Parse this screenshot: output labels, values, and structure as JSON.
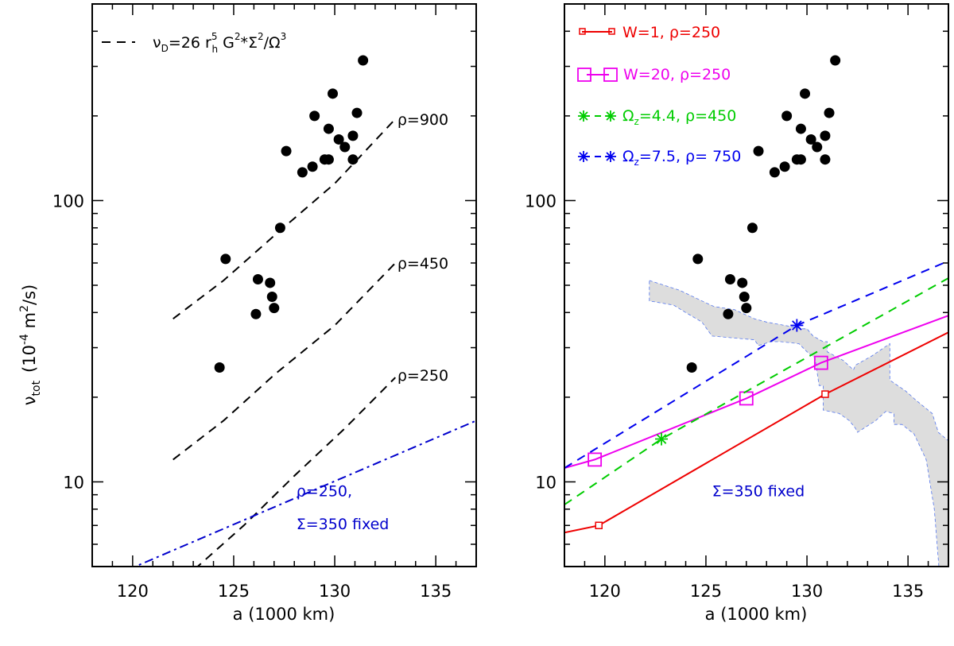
{
  "chart_data": [
    {
      "type": "scatter",
      "panel": "left",
      "xlabel": "a (1000 km)",
      "ylabel_main": "ν",
      "ylabel_sub": "tot",
      "ylabel_units_pre": "(10",
      "ylabel_units_exp": "-4",
      "ylabel_units_post": " m",
      "ylabel_units_sq": "2",
      "ylabel_units_end": "/s)",
      "xlim": [
        118,
        137
      ],
      "ylim": [
        5,
        500
      ],
      "yscale": "log",
      "xticks": [
        120,
        125,
        130,
        135
      ],
      "yticks": [
        10,
        100
      ],
      "legend": {
        "style": "dashed",
        "nu": "ν",
        "nu_sub": "D",
        "eq1": "=26 r",
        "r_sup": "5",
        "r_sub": "h",
        "eq2": " G",
        "g_sup": "2",
        "eq3": "*Σ",
        "s_sup": "2",
        "eq4": "/Ω",
        "o_sup": "3"
      },
      "points": [
        {
          "x": 124.3,
          "y": 25.5
        },
        {
          "x": 124.6,
          "y": 62
        },
        {
          "x": 126.1,
          "y": 39.5
        },
        {
          "x": 126.2,
          "y": 52.5
        },
        {
          "x": 126.8,
          "y": 51
        },
        {
          "x": 126.9,
          "y": 45.5
        },
        {
          "x": 127.0,
          "y": 41.5
        },
        {
          "x": 127.3,
          "y": 80
        },
        {
          "x": 127.6,
          "y": 150
        },
        {
          "x": 128.4,
          "y": 126
        },
        {
          "x": 128.9,
          "y": 132
        },
        {
          "x": 129.0,
          "y": 200
        },
        {
          "x": 129.5,
          "y": 140
        },
        {
          "x": 129.7,
          "y": 140
        },
        {
          "x": 129.7,
          "y": 180
        },
        {
          "x": 129.9,
          "y": 240
        },
        {
          "x": 130.2,
          "y": 165
        },
        {
          "x": 130.5,
          "y": 155
        },
        {
          "x": 130.9,
          "y": 140
        },
        {
          "x": 130.9,
          "y": 170
        },
        {
          "x": 131.1,
          "y": 205
        },
        {
          "x": 131.4,
          "y": 315
        }
      ],
      "series": [
        {
          "name": "ρ=900",
          "style": "dashed",
          "color": "#000000",
          "x": [
            122,
            124.5,
            127,
            130,
            133
          ],
          "y": [
            38,
            52,
            75,
            115,
            195
          ]
        },
        {
          "name": "ρ=450",
          "style": "dashed",
          "color": "#000000",
          "x": [
            122,
            124.5,
            127,
            130,
            133
          ],
          "y": [
            12,
            16.5,
            24,
            36,
            60
          ]
        },
        {
          "name": "ρ=250",
          "style": "dashed",
          "color": "#000000",
          "x": [
            122.5,
            125.5,
            128,
            130.5,
            133
          ],
          "y": [
            4.5,
            7,
            10.5,
            15.5,
            23.5
          ]
        },
        {
          "name": "ρ=250, Σ=350 fixed",
          "style": "dashdot",
          "color": "#0000cc",
          "x": [
            118,
            137
          ],
          "y": [
            4.3,
            16.5
          ]
        }
      ],
      "annotations": [
        {
          "text": "ρ=900",
          "x": 133.1,
          "y": 195
        },
        {
          "text": "ρ=450",
          "x": 133.1,
          "y": 60
        },
        {
          "text": "ρ=250",
          "x": 133.1,
          "y": 24
        },
        {
          "text": "ρ=250,",
          "x": 128.1,
          "y": 9.3,
          "color": "#0000cc"
        },
        {
          "text": "Σ=350 fixed",
          "x": 128.1,
          "y": 7.1,
          "color": "#0000cc"
        }
      ]
    },
    {
      "type": "line",
      "panel": "right",
      "xlabel": "a (1000 km)",
      "xlim": [
        118,
        137
      ],
      "ylim": [
        5,
        500
      ],
      "yscale": "log",
      "xticks": [
        120,
        125,
        130,
        135
      ],
      "yticks": [
        10,
        100
      ],
      "points": [
        {
          "x": 124.3,
          "y": 25.5
        },
        {
          "x": 124.6,
          "y": 62
        },
        {
          "x": 126.1,
          "y": 39.5
        },
        {
          "x": 126.2,
          "y": 52.5
        },
        {
          "x": 126.8,
          "y": 51
        },
        {
          "x": 126.9,
          "y": 45.5
        },
        {
          "x": 127.0,
          "y": 41.5
        },
        {
          "x": 127.3,
          "y": 80
        },
        {
          "x": 127.6,
          "y": 150
        },
        {
          "x": 128.4,
          "y": 126
        },
        {
          "x": 128.9,
          "y": 132
        },
        {
          "x": 129.0,
          "y": 200
        },
        {
          "x": 129.5,
          "y": 140
        },
        {
          "x": 129.7,
          "y": 140
        },
        {
          "x": 129.7,
          "y": 180
        },
        {
          "x": 129.9,
          "y": 240
        },
        {
          "x": 130.2,
          "y": 165
        },
        {
          "x": 130.5,
          "y": 155
        },
        {
          "x": 130.9,
          "y": 140
        },
        {
          "x": 130.9,
          "y": 170
        },
        {
          "x": 131.1,
          "y": 205
        },
        {
          "x": 131.4,
          "y": 315
        }
      ],
      "series": [
        {
          "name": "W=1, ρ=250",
          "style": "solid",
          "color": "#ee0000",
          "marker": "square-small",
          "x": [
            118,
            119.7,
            130.9,
            137
          ],
          "y": [
            6.6,
            7.0,
            20.5,
            34
          ],
          "marked_points": [
            {
              "x": 119.7,
              "y": 7.0
            },
            {
              "x": 130.9,
              "y": 20.5
            }
          ]
        },
        {
          "name": "W=20, ρ=250",
          "style": "solid",
          "color": "#ee00ee",
          "marker": "square-large",
          "x": [
            118,
            119.5,
            127.0,
            130.7,
            137
          ],
          "y": [
            11.2,
            12.0,
            19.8,
            26.5,
            39
          ],
          "marked_points": [
            {
              "x": 119.5,
              "y": 12.0
            },
            {
              "x": 127.0,
              "y": 19.8
            },
            {
              "x": 130.7,
              "y": 26.5
            }
          ]
        },
        {
          "name": "Ωz=4.4, ρ=450",
          "style": "dashed",
          "color": "#00cc00",
          "marker": "asterisk",
          "x": [
            118,
            122.8,
            137
          ],
          "y": [
            8.3,
            14.2,
            53
          ],
          "marked_points": [
            {
              "x": 122.8,
              "y": 14.2
            }
          ]
        },
        {
          "name": "Ωz=7.5, ρ= 750",
          "style": "dashed",
          "color": "#0000ee",
          "marker": "asterisk",
          "x": [
            118,
            129.5,
            137
          ],
          "y": [
            11.2,
            36,
            61
          ],
          "marked_points": [
            {
              "x": 129.5,
              "y": 36
            }
          ]
        }
      ],
      "band": {
        "color": "#dddddd",
        "edge_color": "#5577ee",
        "upper": [
          [
            122.2,
            52
          ],
          [
            123.7,
            48
          ],
          [
            124.8,
            44
          ],
          [
            125.4,
            42
          ],
          [
            126.4,
            41
          ],
          [
            127.4,
            38
          ],
          [
            128.0,
            37
          ],
          [
            129.8,
            35
          ],
          [
            130.0,
            35
          ],
          [
            130.3,
            33
          ],
          [
            130.8,
            31.5
          ],
          [
            131.0,
            31.5
          ],
          [
            131.0,
            29
          ],
          [
            131.8,
            27
          ],
          [
            132.3,
            25
          ],
          [
            132.4,
            26
          ],
          [
            133.2,
            28
          ],
          [
            134.1,
            31
          ],
          [
            134.1,
            23
          ],
          [
            134.9,
            21
          ],
          [
            135.4,
            19.5
          ],
          [
            136.2,
            17.5
          ],
          [
            136.5,
            15
          ],
          [
            137.0,
            14
          ]
        ],
        "lower": [
          [
            137.0,
            5
          ],
          [
            136.6,
            4.3
          ],
          [
            136.3,
            8
          ],
          [
            135.9,
            12
          ],
          [
            135.3,
            14.8
          ],
          [
            134.7,
            16
          ],
          [
            134.3,
            16
          ],
          [
            134.3,
            17.5
          ],
          [
            133.9,
            17.8
          ],
          [
            133.4,
            16.5
          ],
          [
            132.5,
            15
          ],
          [
            132.4,
            15.5
          ],
          [
            132.1,
            16.5
          ],
          [
            131.6,
            17.5
          ],
          [
            130.8,
            18
          ],
          [
            130.8,
            22
          ],
          [
            130.6,
            22
          ],
          [
            130.4,
            27.5
          ],
          [
            130.0,
            29
          ],
          [
            129.6,
            31
          ],
          [
            128.7,
            31.5
          ],
          [
            128.2,
            31.5
          ],
          [
            127.6,
            30.5
          ],
          [
            127.4,
            32
          ],
          [
            126.3,
            32.5
          ],
          [
            125.3,
            33
          ],
          [
            124.8,
            37
          ],
          [
            124.0,
            40
          ],
          [
            123.4,
            42.5
          ],
          [
            122.2,
            44
          ]
        ]
      },
      "legend": [
        {
          "label": "W=1, ρ=250",
          "color": "#ee0000",
          "marker": "square-small"
        },
        {
          "label": "W=20, ρ=250",
          "color": "#ee00ee",
          "marker": "square-large"
        },
        {
          "label": "Ωz=4.4, ρ=450",
          "color": "#00cc00",
          "marker": "asterisk",
          "label_prefix": "Ω",
          "label_sub": "z",
          "label_rest": "=4.4, ρ=450"
        },
        {
          "label": "Ωz=7.5, ρ= 750",
          "color": "#0000ee",
          "marker": "asterisk",
          "label_prefix": "Ω",
          "label_sub": "z",
          "label_rest": "=7.5, ρ= 750"
        }
      ],
      "annotations": [
        {
          "text": "Σ=350 fixed",
          "x": 125.3,
          "y": 9.3,
          "color": "#0000cc"
        }
      ]
    }
  ]
}
